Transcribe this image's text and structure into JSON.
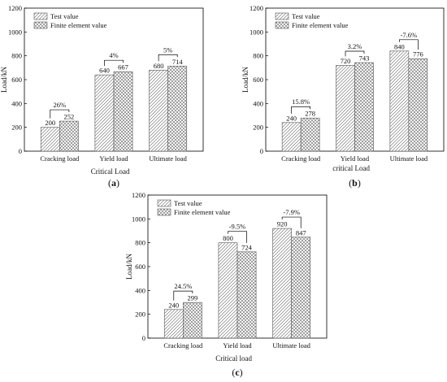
{
  "colors": {
    "bar_fill": "#eeeeee",
    "hatch": "#555555",
    "axis": "#000000"
  },
  "chart_data": [
    {
      "panel": "(a)",
      "type": "bar",
      "categories": [
        "Cracking load",
        "Yield load",
        "Ultimate load"
      ],
      "series": [
        {
          "name": "Test value",
          "pattern": "diagonal-hatch",
          "values": [
            200,
            640,
            680
          ]
        },
        {
          "name": "Finite element value",
          "pattern": "cross-hatch",
          "values": [
            252,
            667,
            714
          ]
        }
      ],
      "differences": [
        "26%",
        "4%",
        "5%"
      ],
      "xlabel": "Critical Load",
      "ylabel": "Load/kN",
      "ylim": [
        0,
        1200
      ],
      "yticks": [
        0,
        200,
        400,
        600,
        800,
        1000,
        1200
      ],
      "legend": "top-left",
      "grid": false
    },
    {
      "panel": "(b)",
      "type": "bar",
      "categories": [
        "Cracking load",
        "Yield load",
        "Ultimate load"
      ],
      "series": [
        {
          "name": "Test value",
          "pattern": "diagonal-hatch",
          "values": [
            240,
            720,
            840
          ]
        },
        {
          "name": "Finite element value",
          "pattern": "cross-hatch",
          "values": [
            278,
            743,
            776
          ]
        }
      ],
      "differences": [
        "15.8%",
        "3.2%",
        "-7.6%"
      ],
      "xlabel": "critical Load",
      "ylabel": "Load/kN",
      "ylim": [
        0,
        1200
      ],
      "yticks": [
        0,
        200,
        400,
        600,
        800,
        1000,
        1200
      ],
      "legend": "top-left",
      "grid": false
    },
    {
      "panel": "(c)",
      "type": "bar",
      "categories": [
        "Cracking load",
        "Yield load",
        "Ultimate load"
      ],
      "series": [
        {
          "name": "Test value",
          "pattern": "diagonal-hatch",
          "values": [
            240,
            800,
            920
          ]
        },
        {
          "name": "Finite element value",
          "pattern": "cross-hatch",
          "values": [
            299,
            724,
            847
          ]
        }
      ],
      "differences": [
        "24.5%",
        "-9.5%",
        "-7.9%"
      ],
      "xlabel": "Critical load",
      "ylabel": "Load/kN",
      "ylim": [
        0,
        1200
      ],
      "yticks": [
        0,
        200,
        400,
        600,
        800,
        1000,
        1200
      ],
      "legend": "top-left",
      "grid": false
    }
  ]
}
